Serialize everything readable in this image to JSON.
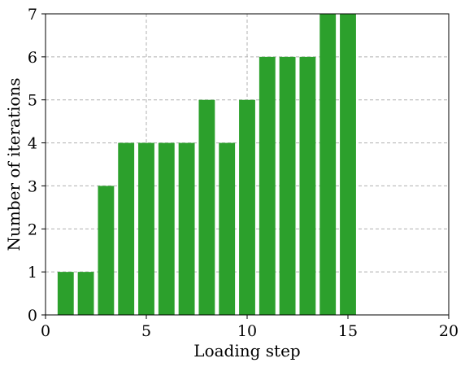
{
  "chart_data": {
    "type": "bar",
    "x": [
      1,
      2,
      3,
      4,
      5,
      6,
      7,
      8,
      9,
      10,
      11,
      12,
      13,
      14,
      15
    ],
    "values": [
      1,
      1,
      3,
      4,
      4,
      4,
      4,
      5,
      4,
      5,
      6,
      6,
      6,
      7,
      7
    ],
    "bar_width": 0.8,
    "xlabel": "Loading step",
    "ylabel": "Number of iterations",
    "xlim": [
      0,
      20
    ],
    "ylim": [
      0,
      7
    ],
    "xticks": [
      "0",
      "5",
      "10",
      "15",
      "20"
    ],
    "yticks": [
      "0",
      "1",
      "2",
      "3",
      "4",
      "5",
      "6",
      "7"
    ],
    "grid": true,
    "bar_color": "#2ca02c",
    "grid_color": "#b0b0b0"
  }
}
